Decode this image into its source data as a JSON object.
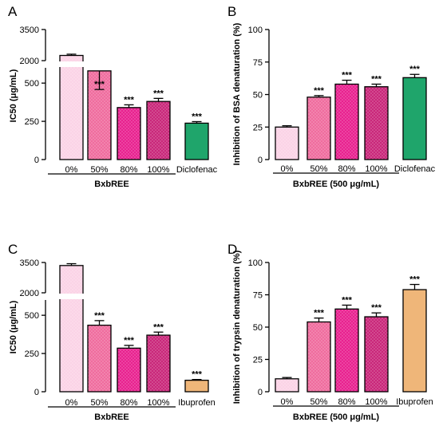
{
  "chart_data": [
    {
      "panel": "A",
      "type": "bar",
      "ylabel": "IC50 (μg/mL)",
      "group_label": "BxbREE",
      "categories": [
        "0%",
        "50%",
        "80%",
        "100%",
        "Diclofenac"
      ],
      "values": [
        2250,
        580,
        340,
        380,
        238
      ],
      "errors": [
        60,
        30,
        18,
        20,
        10
      ],
      "significance": [
        "",
        "***",
        "***",
        "***",
        "***"
      ],
      "y_axis": "broken",
      "y_lower_range": [
        0,
        600
      ],
      "y_lower_ticks": [
        "0",
        "250",
        "500"
      ],
      "y_upper_range": [
        2000,
        3500
      ],
      "y_upper_ticks": [
        "2000",
        "3500"
      ],
      "colors": [
        "#fbd3e6",
        "#ef6c9e",
        "#e8218f",
        "#c9277a",
        "#1fa56b"
      ]
    },
    {
      "panel": "B",
      "type": "bar",
      "ylabel": "Inhibition of BSA denaturation (%)",
      "group_label": "BxbREE (500 μg/mL)",
      "categories": [
        "0%",
        "50%",
        "80%",
        "100%",
        "Diclofenac"
      ],
      "values": [
        25,
        48,
        58,
        56,
        63
      ],
      "errors": [
        1,
        1.2,
        3,
        2,
        2.5
      ],
      "significance": [
        "",
        "***",
        "***",
        "***",
        "***"
      ],
      "ylim": [
        0,
        100
      ],
      "y_ticks": [
        "0",
        "25",
        "50",
        "75",
        "100"
      ],
      "colors": [
        "#fbd3e6",
        "#ef6c9e",
        "#e8218f",
        "#c9277a",
        "#1fa56b"
      ]
    },
    {
      "panel": "C",
      "type": "bar",
      "ylabel": "IC50 (μg/mL)",
      "group_label": "BxbREE",
      "categories": [
        "0%",
        "50%",
        "80%",
        "100%",
        "Ibuprofen"
      ],
      "values": [
        3350,
        435,
        285,
        370,
        75
      ],
      "errors": [
        90,
        30,
        18,
        20,
        5
      ],
      "significance": [
        "",
        "***",
        "***",
        "***",
        "***"
      ],
      "y_axis": "broken",
      "y_lower_range": [
        0,
        600
      ],
      "y_lower_ticks": [
        "0",
        "250",
        "500"
      ],
      "y_upper_range": [
        2000,
        3500
      ],
      "y_upper_ticks": [
        "2000",
        "3500"
      ],
      "colors": [
        "#fbd3e6",
        "#ef6c9e",
        "#e8218f",
        "#c9277a",
        "#efb679"
      ]
    },
    {
      "panel": "D",
      "type": "bar",
      "ylabel": "Inhibition of trypsin denaturation (%)",
      "group_label": "BxbREE (500 μg/mL)",
      "categories": [
        "0%",
        "50%",
        "80%",
        "100%",
        "Ibuprofen"
      ],
      "values": [
        10,
        54,
        64,
        58,
        79
      ],
      "errors": [
        1,
        3,
        3,
        3,
        4
      ],
      "significance": [
        "",
        "***",
        "***",
        "***",
        "***"
      ],
      "ylim": [
        0,
        100
      ],
      "y_ticks": [
        "0",
        "25",
        "50",
        "75",
        "100"
      ],
      "colors": [
        "#fbd3e6",
        "#ef6c9e",
        "#e8218f",
        "#c9277a",
        "#efb679"
      ]
    }
  ]
}
